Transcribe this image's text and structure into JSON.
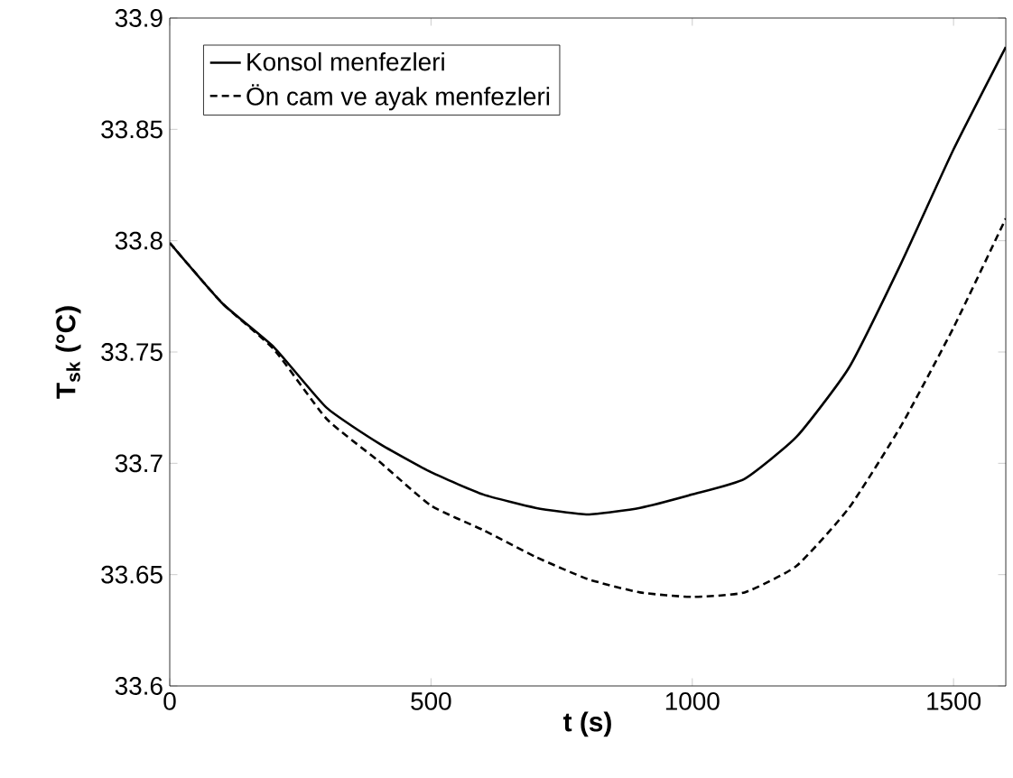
{
  "chart_data": {
    "type": "line",
    "xlabel": "**t (s)**",
    "ylabel": "**T$_{sk}$ (°C)**",
    "x": [
      0,
      100,
      200,
      300,
      400,
      500,
      600,
      700,
      800,
      900,
      1000,
      1100,
      1200,
      1300,
      1400,
      1500,
      1600
    ],
    "series": [
      {
        "name": "Konsol menfezleri",
        "color": "#000000",
        "line_style": "solid",
        "values": [
          33.799,
          33.772,
          33.752,
          33.725,
          33.709,
          33.696,
          33.686,
          33.68,
          33.677,
          33.68,
          33.686,
          33.693,
          33.712,
          33.743,
          33.79,
          33.841,
          33.887
        ]
      },
      {
        "name": "Ön cam ve ayak menfezleri",
        "color": "#000000",
        "line_style": "dashed",
        "values": [
          33.799,
          33.772,
          33.751,
          33.72,
          33.701,
          33.681,
          33.67,
          33.658,
          33.648,
          33.642,
          33.64,
          33.642,
          33.654,
          33.68,
          33.717,
          33.761,
          33.81
        ]
      }
    ],
    "xlim": [
      0,
      1600
    ],
    "ylim": [
      33.6,
      33.9
    ],
    "xticks": [
      0,
      500,
      1000,
      1500
    ],
    "yticks": [
      33.6,
      33.65,
      33.7,
      33.75,
      33.8,
      33.85,
      33.9
    ],
    "grid": false,
    "legend": "top left",
    "marker": "none"
  }
}
